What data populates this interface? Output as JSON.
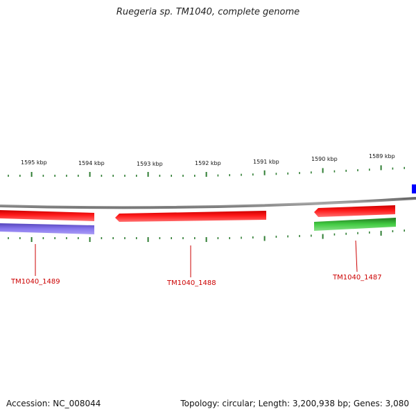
{
  "title": "Ruegeria sp. TM1040, complete genome",
  "scale_labels": [
    "1595 kbp",
    "1594 kbp",
    "1593 kbp",
    "1592 kbp",
    "1591 kbp",
    "1590 kbp",
    "1589 kbp"
  ],
  "gene_labels": [
    "TM1040_1489",
    "TM1040_1488",
    "TM1040_1487"
  ],
  "footer": {
    "accession": "Accession: NC_008044",
    "summary": "Topology: circular; Length: 3,200,938 bp; Genes: 3,080"
  },
  "colors": {
    "backbone": "#8a8a8a",
    "gene_forward": "#ff0000",
    "gene_reverse_purple": "#7766dd",
    "gene_green": "#33bb33",
    "gene_blue": "#0000ff",
    "ticks": "#2e7d32",
    "label": "#cc0000"
  }
}
